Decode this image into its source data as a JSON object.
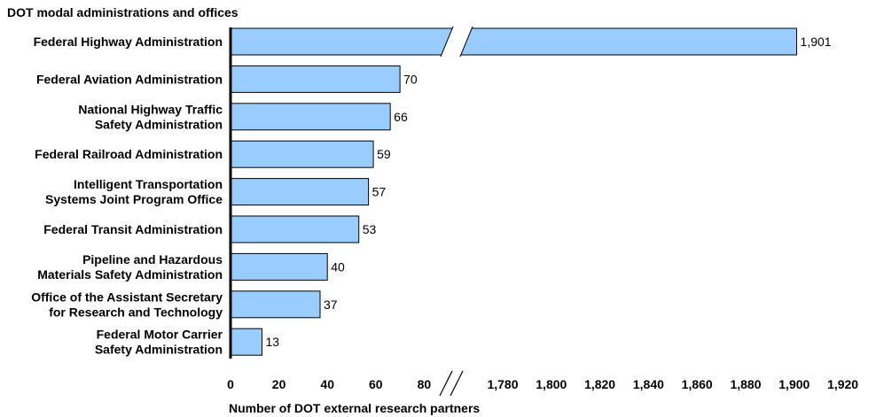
{
  "chart_data": {
    "type": "bar",
    "orientation": "horizontal",
    "title": "DOT modal administrations and offices",
    "xlabel": "Number of DOT external research partners",
    "ylabel": "",
    "categories": [
      [
        "Federal Highway Administration"
      ],
      [
        "Federal Aviation Administration"
      ],
      [
        "National Highway Traffic",
        "Safety Administration"
      ],
      [
        "Federal Railroad Administration"
      ],
      [
        "Intelligent Transportation",
        "Systems Joint Program Office"
      ],
      [
        "Federal Transit Administration"
      ],
      [
        "Pipeline and Hazardous",
        "Materials Safety Administration"
      ],
      [
        "Office of the Assistant Secretary",
        "for Research and Technology"
      ],
      [
        "Federal Motor Carrier",
        "Safety Administration"
      ]
    ],
    "values": [
      1901,
      70,
      66,
      59,
      57,
      53,
      40,
      37,
      13
    ],
    "value_labels": [
      "1,901",
      "70",
      "66",
      "59",
      "57",
      "53",
      "40",
      "37",
      "13"
    ],
    "axis_break": {
      "lower_range": [
        0,
        80
      ],
      "upper_range": [
        1780,
        1920
      ]
    },
    "xticks_lower": [
      "0",
      "20",
      "40",
      "60",
      "80"
    ],
    "xticks_upper": [
      "1,780",
      "1,800",
      "1,820",
      "1,840",
      "1,860",
      "1,880",
      "1,900",
      "1,920"
    ],
    "bar_color": "#99ccff",
    "bar_edge_color": "#000000",
    "grid": false
  }
}
